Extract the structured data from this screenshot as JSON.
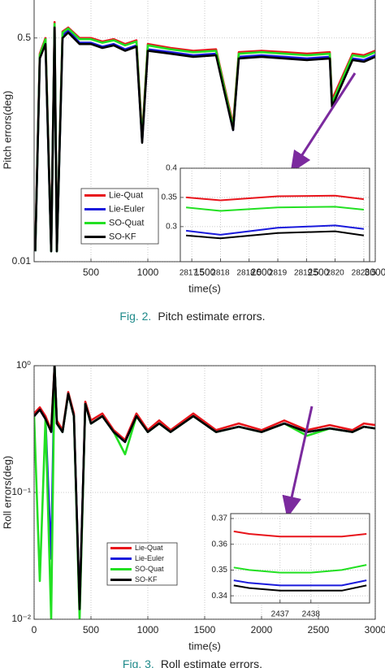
{
  "chart_data": [
    {
      "type": "line",
      "role": "main",
      "ylabel": "Pitch errors(deg)",
      "xlabel": "time(s)",
      "caption_label": "Fig. 2.",
      "caption": "Pitch estimate errors.",
      "log_y": true,
      "grid": true,
      "legend": true,
      "xlim": [
        0,
        3000
      ],
      "xticks": [
        500,
        1000,
        1500,
        2000,
        2500,
        3000
      ],
      "ylim": [
        0.01,
        1
      ],
      "yticks": [
        0.01,
        0.5
      ],
      "x": [
        10,
        50,
        100,
        150,
        180,
        200,
        250,
        300,
        400,
        500,
        600,
        700,
        800,
        900,
        950,
        1000,
        1200,
        1400,
        1600,
        1750,
        1800,
        2000,
        2200,
        2400,
        2600,
        2620,
        2800,
        2900,
        3000
      ],
      "series": [
        {
          "name": "Lie-Quat",
          "color": "#e8141b",
          "values": [
            0.013,
            0.38,
            0.5,
            0.013,
            0.66,
            0.013,
            0.56,
            0.6,
            0.5,
            0.5,
            0.47,
            0.49,
            0.45,
            0.48,
            0.09,
            0.45,
            0.42,
            0.4,
            0.41,
            0.11,
            0.39,
            0.4,
            0.39,
            0.38,
            0.39,
            0.17,
            0.38,
            0.37,
            0.4
          ]
        },
        {
          "name": "Lie-Euler",
          "color": "#1a1adc",
          "values": [
            0.012,
            0.36,
            0.46,
            0.012,
            0.62,
            0.012,
            0.52,
            0.57,
            0.46,
            0.46,
            0.43,
            0.45,
            0.41,
            0.44,
            0.082,
            0.41,
            0.39,
            0.37,
            0.38,
            0.1,
            0.36,
            0.37,
            0.36,
            0.35,
            0.36,
            0.155,
            0.35,
            0.34,
            0.37
          ]
        },
        {
          "name": "SO-Quat",
          "color": "#22e022",
          "values": [
            0.012,
            0.37,
            0.49,
            0.012,
            0.64,
            0.012,
            0.55,
            0.59,
            0.49,
            0.49,
            0.46,
            0.48,
            0.44,
            0.47,
            0.085,
            0.44,
            0.41,
            0.39,
            0.4,
            0.105,
            0.38,
            0.39,
            0.38,
            0.37,
            0.38,
            0.16,
            0.37,
            0.36,
            0.39
          ]
        },
        {
          "name": "SO-KF",
          "color": "#000000",
          "values": [
            0.012,
            0.35,
            0.45,
            0.012,
            0.6,
            0.012,
            0.5,
            0.55,
            0.45,
            0.45,
            0.42,
            0.44,
            0.4,
            0.43,
            0.08,
            0.4,
            0.38,
            0.36,
            0.37,
            0.1,
            0.35,
            0.36,
            0.35,
            0.34,
            0.35,
            0.15,
            0.34,
            0.33,
            0.36
          ]
        }
      ]
    },
    {
      "type": "line",
      "role": "inset",
      "grid": true,
      "xlim": [
        2817.3,
        2820.6
      ],
      "xticks": [
        2817.5,
        2818,
        2818.5,
        2819,
        2819.5,
        2820,
        2820.5
      ],
      "ylim": [
        0.24,
        0.4
      ],
      "yticks": [
        0.3,
        0.35,
        0.4
      ],
      "x": [
        2817.4,
        2818,
        2819,
        2820,
        2820.5
      ],
      "series": [
        {
          "color": "#e8141b",
          "values": [
            0.35,
            0.345,
            0.352,
            0.353,
            0.347
          ]
        },
        {
          "color": "#1a1adc",
          "values": [
            0.293,
            0.286,
            0.298,
            0.302,
            0.296
          ]
        },
        {
          "color": "#22e022",
          "values": [
            0.333,
            0.327,
            0.333,
            0.334,
            0.329
          ]
        },
        {
          "color": "#000000",
          "values": [
            0.285,
            0.28,
            0.289,
            0.292,
            0.285
          ]
        }
      ]
    },
    {
      "type": "line",
      "role": "main",
      "ylabel": "Roll errors(deg)",
      "xlabel": "time(s)",
      "caption_label": "Fig. 3.",
      "caption": "Roll estimate errors.",
      "log_y": true,
      "grid": true,
      "legend": true,
      "xlim": [
        0,
        3000
      ],
      "xticks": [
        0,
        500,
        1000,
        1500,
        2000,
        2500,
        3000
      ],
      "ylim": [
        0.01,
        1
      ],
      "yticks": [
        {
          "value": 0.01,
          "label": "10⁻²"
        },
        {
          "value": 0.1,
          "label": "10⁻¹"
        },
        {
          "value": 1,
          "label": "10⁰"
        }
      ],
      "x": [
        0,
        50,
        100,
        150,
        180,
        200,
        250,
        300,
        350,
        400,
        450,
        500,
        600,
        700,
        800,
        900,
        1000,
        1100,
        1200,
        1400,
        1600,
        1800,
        2000,
        2200,
        2400,
        2600,
        2800,
        2900,
        3000
      ],
      "series": [
        {
          "name": "Lie-Quat",
          "color": "#e8141b",
          "values": [
            0.42,
            0.47,
            0.4,
            0.31,
            1.0,
            0.37,
            0.31,
            0.62,
            0.42,
            0.012,
            0.52,
            0.37,
            0.42,
            0.31,
            0.26,
            0.42,
            0.31,
            0.37,
            0.31,
            0.42,
            0.31,
            0.35,
            0.31,
            0.37,
            0.31,
            0.34,
            0.31,
            0.35,
            0.34
          ]
        },
        {
          "name": "Lie-Euler",
          "color": "#1a1adc",
          "values": [
            0.4,
            0.45,
            0.38,
            0.03,
            1.0,
            0.35,
            0.3,
            0.6,
            0.4,
            0.012,
            0.5,
            0.35,
            0.4,
            0.3,
            0.25,
            0.4,
            0.3,
            0.35,
            0.3,
            0.4,
            0.3,
            0.33,
            0.3,
            0.35,
            0.3,
            0.32,
            0.3,
            0.33,
            0.32
          ]
        },
        {
          "name": "SO-Quat",
          "color": "#22e022",
          "values": [
            0.4,
            0.02,
            0.38,
            0.01,
            1.0,
            0.35,
            0.3,
            0.6,
            0.4,
            0.01,
            0.5,
            0.35,
            0.4,
            0.3,
            0.2,
            0.4,
            0.3,
            0.35,
            0.3,
            0.4,
            0.3,
            0.33,
            0.3,
            0.35,
            0.28,
            0.32,
            0.3,
            0.33,
            0.32
          ]
        },
        {
          "name": "SO-KF",
          "color": "#000000",
          "values": [
            0.4,
            0.45,
            0.38,
            0.3,
            1.0,
            0.35,
            0.3,
            0.6,
            0.4,
            0.012,
            0.5,
            0.35,
            0.4,
            0.3,
            0.25,
            0.4,
            0.3,
            0.35,
            0.3,
            0.4,
            0.3,
            0.33,
            0.3,
            0.35,
            0.3,
            0.32,
            0.3,
            0.33,
            0.32
          ]
        }
      ]
    },
    {
      "type": "line",
      "role": "inset",
      "grid": true,
      "xlim": [
        2435.4,
        2439.9
      ],
      "xticks": [
        2437,
        2438
      ],
      "ylim": [
        0.3372,
        0.3719
      ],
      "yticks": [
        0.34,
        0.35,
        0.36,
        0.37
      ],
      "x": [
        2435.5,
        2436,
        2437,
        2438,
        2439,
        2439.8
      ],
      "series": [
        {
          "color": "#e8141b",
          "values": [
            0.365,
            0.364,
            0.363,
            0.363,
            0.363,
            0.364
          ]
        },
        {
          "color": "#1a1adc",
          "values": [
            0.346,
            0.345,
            0.344,
            0.344,
            0.344,
            0.346
          ]
        },
        {
          "color": "#22e022",
          "values": [
            0.351,
            0.35,
            0.349,
            0.349,
            0.35,
            0.352
          ]
        },
        {
          "color": "#000000",
          "values": [
            0.344,
            0.343,
            0.342,
            0.342,
            0.342,
            0.344
          ]
        }
      ]
    }
  ]
}
